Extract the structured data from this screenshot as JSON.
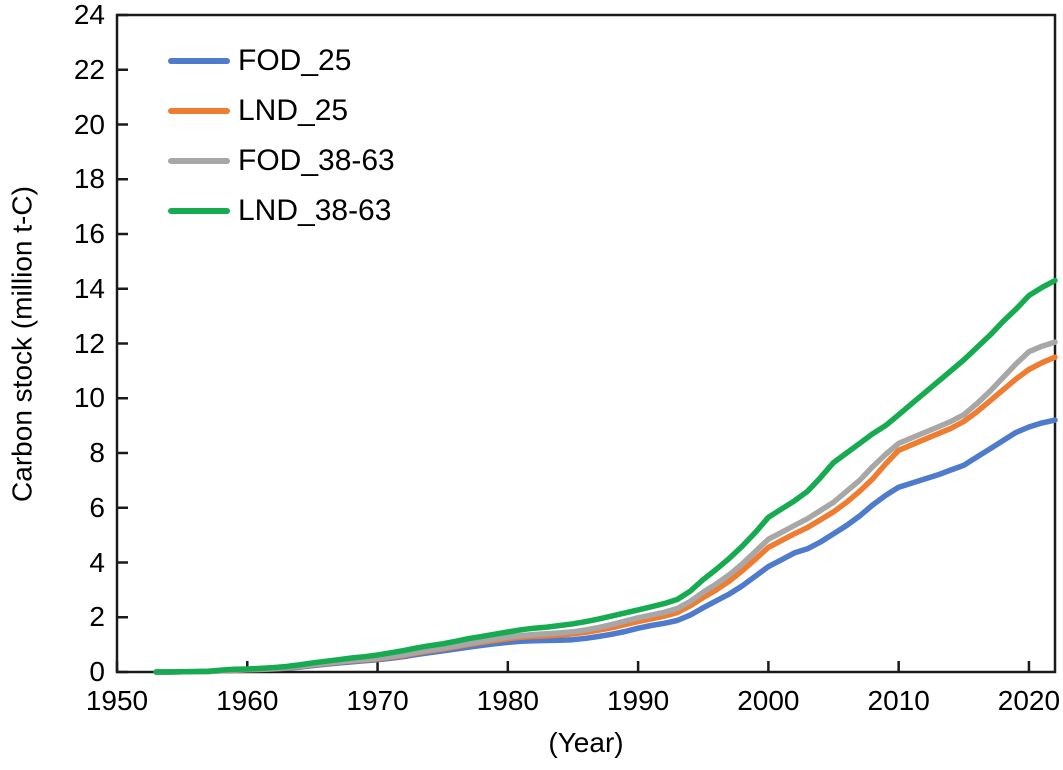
{
  "chart_data": {
    "type": "line",
    "title": "",
    "xlabel": "(Year)",
    "ylabel": "Carbon stock (million t-C)",
    "xlim": [
      1950,
      2022
    ],
    "ylim": [
      0,
      24
    ],
    "x_ticks": [
      1950,
      1960,
      1970,
      1980,
      1990,
      2000,
      2010,
      2020
    ],
    "y_ticks": [
      0,
      2,
      4,
      6,
      8,
      10,
      12,
      14,
      16,
      18,
      20,
      22,
      24
    ],
    "grid": false,
    "legend_position": "top-left-inside",
    "axis_color": "#1a1a1a",
    "x": [
      1953,
      1954,
      1955,
      1956,
      1957,
      1958,
      1959,
      1960,
      1961,
      1962,
      1963,
      1964,
      1965,
      1966,
      1967,
      1968,
      1969,
      1970,
      1971,
      1972,
      1973,
      1974,
      1975,
      1976,
      1977,
      1978,
      1979,
      1980,
      1981,
      1982,
      1983,
      1984,
      1985,
      1986,
      1987,
      1988,
      1989,
      1990,
      1991,
      1992,
      1993,
      1994,
      1995,
      1996,
      1997,
      1998,
      1999,
      2000,
      2001,
      2002,
      2003,
      2004,
      2005,
      2006,
      2007,
      2008,
      2009,
      2010,
      2011,
      2012,
      2013,
      2014,
      2015,
      2016,
      2017,
      2018,
      2019,
      2020,
      2021,
      2022
    ],
    "series": [
      {
        "name": "FOD_25",
        "color": "#4E7BCB",
        "values": [
          0.0,
          0.0,
          0.01,
          0.01,
          0.02,
          0.04,
          0.06,
          0.08,
          0.09,
          0.11,
          0.14,
          0.18,
          0.23,
          0.28,
          0.33,
          0.37,
          0.41,
          0.45,
          0.5,
          0.56,
          0.64,
          0.71,
          0.77,
          0.84,
          0.91,
          0.97,
          1.03,
          1.08,
          1.12,
          1.14,
          1.15,
          1.16,
          1.18,
          1.23,
          1.3,
          1.38,
          1.48,
          1.6,
          1.7,
          1.78,
          1.88,
          2.08,
          2.35,
          2.6,
          2.85,
          3.15,
          3.5,
          3.85,
          4.1,
          4.35,
          4.5,
          4.75,
          5.05,
          5.35,
          5.7,
          6.1,
          6.45,
          6.75,
          6.9,
          7.05,
          7.2,
          7.38,
          7.55,
          7.85,
          8.15,
          8.45,
          8.75,
          8.95,
          9.1,
          9.2
        ]
      },
      {
        "name": "LND_25",
        "color": "#EF7D31",
        "values": [
          0.0,
          0.0,
          0.01,
          0.01,
          0.02,
          0.05,
          0.07,
          0.08,
          0.1,
          0.12,
          0.15,
          0.2,
          0.26,
          0.31,
          0.36,
          0.4,
          0.44,
          0.48,
          0.54,
          0.6,
          0.69,
          0.77,
          0.84,
          0.92,
          1.0,
          1.08,
          1.15,
          1.22,
          1.27,
          1.3,
          1.32,
          1.35,
          1.39,
          1.45,
          1.53,
          1.62,
          1.73,
          1.84,
          1.94,
          2.04,
          2.17,
          2.42,
          2.72,
          3.0,
          3.32,
          3.7,
          4.12,
          4.55,
          4.8,
          5.05,
          5.28,
          5.56,
          5.85,
          6.2,
          6.6,
          7.05,
          7.6,
          8.1,
          8.3,
          8.5,
          8.7,
          8.9,
          9.15,
          9.5,
          9.9,
          10.3,
          10.7,
          11.05,
          11.3,
          11.5
        ]
      },
      {
        "name": "FOD_38-63",
        "color": "#A7A7A7",
        "values": [
          0.0,
          0.0,
          0.01,
          0.01,
          0.02,
          0.05,
          0.08,
          0.09,
          0.11,
          0.13,
          0.16,
          0.21,
          0.27,
          0.32,
          0.37,
          0.42,
          0.46,
          0.5,
          0.56,
          0.63,
          0.72,
          0.8,
          0.87,
          0.95,
          1.04,
          1.12,
          1.2,
          1.28,
          1.33,
          1.37,
          1.4,
          1.43,
          1.47,
          1.54,
          1.63,
          1.74,
          1.86,
          1.98,
          2.08,
          2.18,
          2.32,
          2.58,
          2.92,
          3.22,
          3.55,
          3.95,
          4.4,
          4.85,
          5.1,
          5.35,
          5.6,
          5.9,
          6.2,
          6.6,
          7.0,
          7.5,
          7.95,
          8.35,
          8.55,
          8.75,
          8.95,
          9.15,
          9.4,
          9.8,
          10.25,
          10.75,
          11.25,
          11.7,
          11.9,
          12.05
        ]
      },
      {
        "name": "LND_38-63",
        "color": "#17AB51",
        "values": [
          0.0,
          0.0,
          0.01,
          0.02,
          0.03,
          0.07,
          0.1,
          0.11,
          0.13,
          0.16,
          0.2,
          0.26,
          0.33,
          0.39,
          0.45,
          0.51,
          0.56,
          0.62,
          0.7,
          0.78,
          0.88,
          0.96,
          1.03,
          1.12,
          1.22,
          1.3,
          1.38,
          1.46,
          1.54,
          1.6,
          1.64,
          1.7,
          1.76,
          1.84,
          1.94,
          2.05,
          2.16,
          2.27,
          2.38,
          2.5,
          2.65,
          2.95,
          3.38,
          3.75,
          4.15,
          4.6,
          5.1,
          5.65,
          5.95,
          6.25,
          6.6,
          7.1,
          7.65,
          8.0,
          8.35,
          8.7,
          9.0,
          9.4,
          9.8,
          10.2,
          10.6,
          11.0,
          11.4,
          11.85,
          12.3,
          12.8,
          13.25,
          13.75,
          14.05,
          14.3
        ]
      }
    ]
  }
}
